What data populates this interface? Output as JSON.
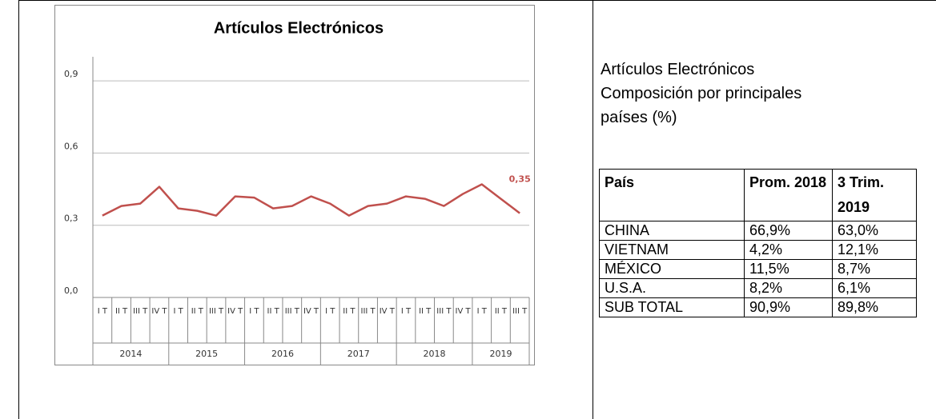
{
  "chart_data": {
    "type": "line",
    "title": "Artículos Electrónicos",
    "category_groups": [
      {
        "label": "2014",
        "categories": [
          "I T",
          "II T",
          "III T",
          "IV T"
        ]
      },
      {
        "label": "2015",
        "categories": [
          "I T",
          "II T",
          "III T",
          "IV T"
        ]
      },
      {
        "label": "2016",
        "categories": [
          "I T",
          "II T",
          "III T",
          "IV T"
        ]
      },
      {
        "label": "2017",
        "categories": [
          "I T",
          "II T",
          "III T",
          "IV T"
        ]
      },
      {
        "label": "2018",
        "categories": [
          "I T",
          "II T",
          "III T",
          "IV T"
        ]
      },
      {
        "label": "2019",
        "categories": [
          "I T",
          "II T",
          "III T"
        ]
      }
    ],
    "series": [
      {
        "name": "Artículos Electrónicos",
        "color": "#c0504d",
        "values": [
          0.34,
          0.38,
          0.39,
          0.46,
          0.37,
          0.36,
          0.34,
          0.42,
          0.415,
          0.37,
          0.38,
          0.42,
          0.39,
          0.34,
          0.38,
          0.39,
          0.42,
          0.41,
          0.38,
          0.43,
          0.47,
          0.41,
          0.35
        ],
        "value_labels": [
          null,
          null,
          null,
          null,
          null,
          null,
          null,
          null,
          null,
          null,
          null,
          null,
          null,
          null,
          null,
          null,
          null,
          null,
          null,
          null,
          null,
          null,
          "0,35"
        ]
      }
    ],
    "ylim": [
      0,
      1.0
    ],
    "yticks": [
      {
        "value": 0,
        "label": "0,0"
      },
      {
        "value": 0.3,
        "label": "0,3"
      },
      {
        "value": 0.6,
        "label": "0,6"
      },
      {
        "value": 0.9,
        "label": "0,9"
      }
    ],
    "grid": true
  },
  "side": {
    "title": "Artículos Electrónicos",
    "subtitle": "Composición por principales países (%)"
  },
  "table": {
    "header": [
      "País",
      "Prom. 2018",
      "3 Trim. 2019"
    ],
    "rows": [
      [
        "CHINA",
        "66,9%",
        "63,0%"
      ],
      [
        "VIETNAM",
        "4,2%",
        "12,1%"
      ],
      [
        "MÉXICO",
        "11,5%",
        "8,7%"
      ],
      [
        "U.S.A.",
        "8,2%",
        "6,1%"
      ],
      [
        "SUB TOTAL",
        "90,9%",
        "89,8%"
      ]
    ]
  }
}
